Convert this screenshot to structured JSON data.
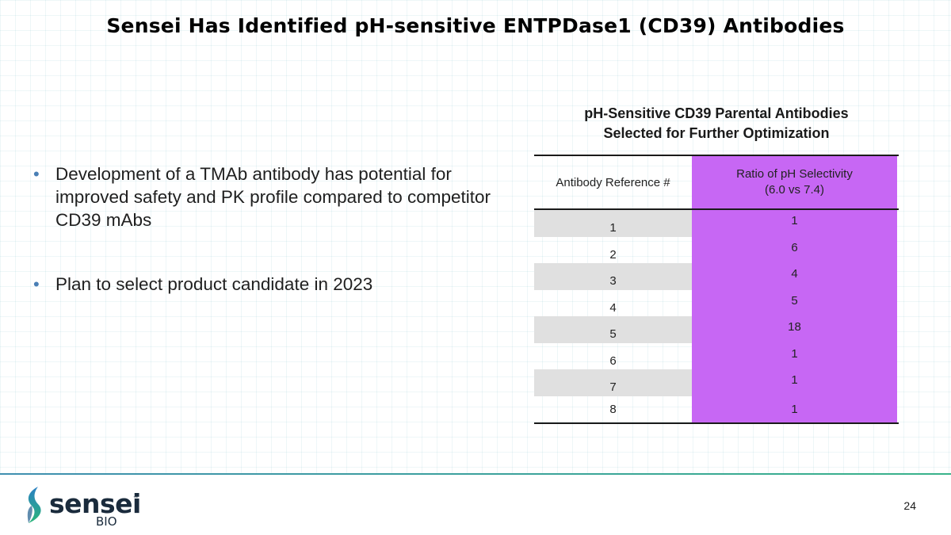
{
  "slide": {
    "title": "Sensei Has Identified pH-sensitive ENTPDase1 (CD39) Antibodies",
    "page_number": "24"
  },
  "bullets": [
    "Development of a TMAb antibody has potential for improved safety and PK profile compared to competitor CD39 mAbs",
    "Plan to select product candidate in 2023"
  ],
  "table": {
    "title_line1": "pH-Sensitive CD39 Parental Antibodies",
    "title_line2": "Selected for Further Optimization",
    "header_ref": "Antibody Reference #",
    "header_ratio_line1": "Ratio of pH Selectivity",
    "header_ratio_line2": "(6.0 vs 7.4)",
    "accent_color": "#c767f4",
    "rows": [
      {
        "ref": "1",
        "ratio": "1"
      },
      {
        "ref": "2",
        "ratio": "6"
      },
      {
        "ref": "3",
        "ratio": "4"
      },
      {
        "ref": "4",
        "ratio": "5"
      },
      {
        "ref": "5",
        "ratio": "18"
      },
      {
        "ref": "6",
        "ratio": "1"
      },
      {
        "ref": "7",
        "ratio": "1"
      },
      {
        "ref": "8",
        "ratio": "1"
      }
    ]
  },
  "logo": {
    "word": "sensei",
    "trademark": "™",
    "sub": "BIO",
    "icon": "sensei-leaf-icon"
  }
}
